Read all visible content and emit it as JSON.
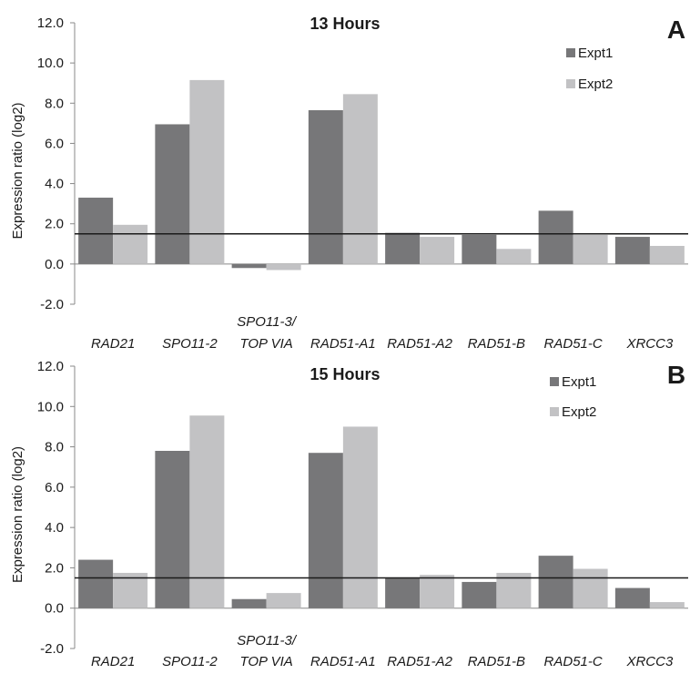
{
  "colors": {
    "Expt1": "#777779",
    "Expt2": "#c2c2c4",
    "axis": "#888888",
    "threshold": "#1a1a1a"
  },
  "chart_data": [
    {
      "type": "bar",
      "title": "13 Hours",
      "panel": "A",
      "ylabel": "Expression ratio (log2)",
      "xlabel": "",
      "ylim": [
        -2,
        12
      ],
      "yticks": [
        -2,
        0,
        2,
        4,
        6,
        8,
        10,
        12
      ],
      "ytick_labels": [
        "-2.0",
        "0.0",
        "2.0",
        "4.0",
        "6.0",
        "8.0",
        "10.0",
        "12.0"
      ],
      "threshold": 1.5,
      "legend_position": "top-right",
      "categories": [
        [
          "RAD21"
        ],
        [
          "SPO11-2"
        ],
        [
          "SPO11-3/",
          "TOP VIA"
        ],
        [
          "RAD51-A1"
        ],
        [
          "RAD51-A2"
        ],
        [
          "RAD51-B"
        ],
        [
          "RAD51-C"
        ],
        [
          "XRCC3"
        ]
      ],
      "series": [
        {
          "name": "Expt1",
          "values": [
            3.3,
            6.95,
            -0.2,
            7.65,
            1.55,
            1.45,
            2.65,
            1.35
          ]
        },
        {
          "name": "Expt2",
          "values": [
            1.95,
            9.15,
            -0.3,
            8.45,
            1.35,
            0.75,
            1.45,
            0.9
          ]
        }
      ]
    },
    {
      "type": "bar",
      "title": "15 Hours",
      "panel": "B",
      "ylabel": "Expression ratio (log2)",
      "xlabel": "",
      "ylim": [
        -2,
        12
      ],
      "yticks": [
        -2,
        0,
        2,
        4,
        6,
        8,
        10,
        12
      ],
      "ytick_labels": [
        "-2.0",
        "0.0",
        "2.0",
        "4.0",
        "6.0",
        "8.0",
        "10.0",
        "12.0"
      ],
      "threshold": 1.5,
      "legend_position": "top-right",
      "categories": [
        [
          "RAD21"
        ],
        [
          "SPO11-2"
        ],
        [
          "SPO11-3/",
          "TOP VIA"
        ],
        [
          "RAD51-A1"
        ],
        [
          "RAD51-A2"
        ],
        [
          "RAD51-B"
        ],
        [
          "RAD51-C"
        ],
        [
          "XRCC3"
        ]
      ],
      "series": [
        {
          "name": "Expt1",
          "values": [
            2.4,
            7.8,
            0.45,
            7.7,
            1.5,
            1.3,
            2.6,
            1.0
          ]
        },
        {
          "name": "Expt2",
          "values": [
            1.75,
            9.55,
            0.75,
            9.0,
            1.65,
            1.75,
            1.95,
            0.3
          ]
        }
      ]
    }
  ]
}
